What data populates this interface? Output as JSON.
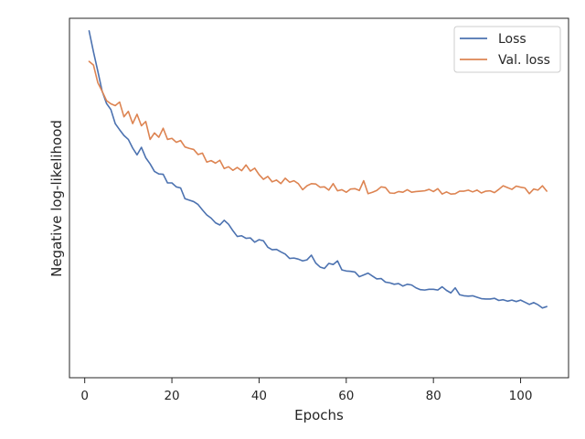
{
  "chart_data": {
    "type": "line",
    "title": "",
    "xlabel": "Epochs",
    "ylabel": "Negative log-likelihood",
    "xlim": [
      -3.5,
      111
    ],
    "ylim": [
      0,
      1
    ],
    "x_ticks": [
      0,
      20,
      40,
      60,
      80,
      100
    ],
    "y_ticks": [],
    "grid": false,
    "legend": "top-right",
    "series": [
      {
        "name": "Loss",
        "color": "#4c72b0",
        "x_start": 1,
        "values": [
          0.965,
          0.907,
          0.853,
          0.797,
          0.763,
          0.746,
          0.707,
          0.69,
          0.674,
          0.663,
          0.639,
          0.62,
          0.641,
          0.612,
          0.595,
          0.574,
          0.567,
          0.566,
          0.542,
          0.542,
          0.531,
          0.528,
          0.498,
          0.494,
          0.49,
          0.482,
          0.467,
          0.453,
          0.444,
          0.431,
          0.425,
          0.438,
          0.427,
          0.409,
          0.393,
          0.395,
          0.388,
          0.389,
          0.377,
          0.384,
          0.381,
          0.363,
          0.356,
          0.357,
          0.35,
          0.344,
          0.332,
          0.333,
          0.33,
          0.325,
          0.328,
          0.341,
          0.319,
          0.308,
          0.304,
          0.318,
          0.315,
          0.325,
          0.3,
          0.297,
          0.296,
          0.294,
          0.281,
          0.286,
          0.291,
          0.283,
          0.275,
          0.276,
          0.266,
          0.264,
          0.26,
          0.262,
          0.255,
          0.26,
          0.258,
          0.25,
          0.245,
          0.244,
          0.246,
          0.246,
          0.244,
          0.253,
          0.243,
          0.236,
          0.25,
          0.231,
          0.228,
          0.227,
          0.228,
          0.224,
          0.22,
          0.219,
          0.219,
          0.221,
          0.215,
          0.217,
          0.213,
          0.216,
          0.212,
          0.216,
          0.21,
          0.204,
          0.209,
          0.203,
          0.194,
          0.198
        ]
      },
      {
        "name": "Val. loss",
        "color": "#dd8452",
        "x_start": 1,
        "values": [
          0.88,
          0.87,
          0.821,
          0.797,
          0.771,
          0.762,
          0.757,
          0.767,
          0.726,
          0.741,
          0.707,
          0.733,
          0.701,
          0.713,
          0.663,
          0.681,
          0.669,
          0.694,
          0.663,
          0.666,
          0.655,
          0.66,
          0.642,
          0.638,
          0.635,
          0.621,
          0.625,
          0.6,
          0.604,
          0.597,
          0.605,
          0.582,
          0.587,
          0.577,
          0.585,
          0.576,
          0.592,
          0.575,
          0.583,
          0.565,
          0.552,
          0.56,
          0.545,
          0.55,
          0.54,
          0.555,
          0.544,
          0.548,
          0.54,
          0.523,
          0.534,
          0.54,
          0.539,
          0.53,
          0.531,
          0.522,
          0.54,
          0.52,
          0.523,
          0.516,
          0.525,
          0.526,
          0.521,
          0.548,
          0.512,
          0.516,
          0.521,
          0.531,
          0.529,
          0.514,
          0.513,
          0.518,
          0.516,
          0.523,
          0.516,
          0.518,
          0.519,
          0.52,
          0.524,
          0.518,
          0.526,
          0.511,
          0.517,
          0.511,
          0.512,
          0.519,
          0.519,
          0.522,
          0.517,
          0.522,
          0.514,
          0.519,
          0.52,
          0.515,
          0.524,
          0.534,
          0.529,
          0.524,
          0.533,
          0.53,
          0.528,
          0.512,
          0.525,
          0.522,
          0.534,
          0.519
        ]
      }
    ]
  }
}
